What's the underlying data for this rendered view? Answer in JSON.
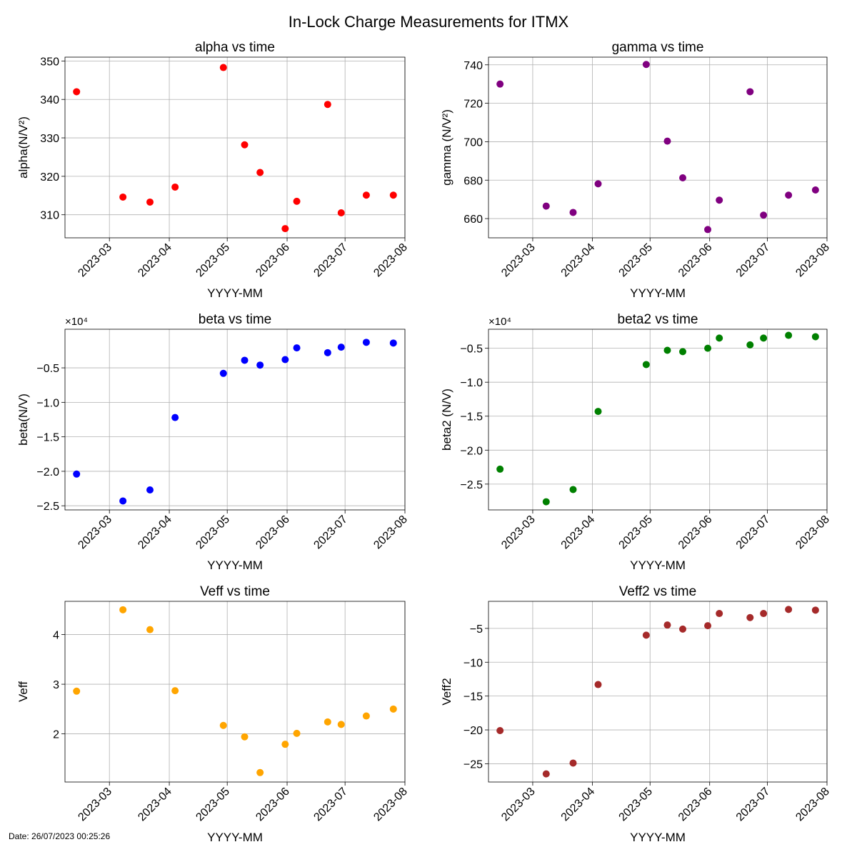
{
  "figure": {
    "title": "In-Lock Charge Measurements for ITMX",
    "footer": "Date: 26/07/2023 00:25:26"
  },
  "chart_data": [
    {
      "type": "scatter",
      "title": "alpha vs time",
      "xlabel": "YYYY-MM",
      "ylabel": "alpha(N/V²)",
      "color": "#ff0000",
      "multiplier": "",
      "x": [
        "2023-02-12",
        "2023-03-08",
        "2023-03-22",
        "2023-04-04",
        "2023-04-29",
        "2023-05-10",
        "2023-05-18",
        "2023-05-31",
        "2023-06-06",
        "2023-06-22",
        "2023-06-29",
        "2023-07-12",
        "2023-07-26"
      ],
      "y": [
        342,
        314.6,
        313.3,
        317.2,
        348.3,
        328.2,
        321.0,
        306.4,
        313.5,
        338.7,
        310.5,
        315.1,
        315.1
      ],
      "ylim": [
        304,
        351
      ],
      "yticks": [
        310,
        320,
        330,
        340,
        350
      ],
      "yticklabels": [
        "310",
        "320",
        "330",
        "340",
        "350"
      ],
      "xticks": [
        "2023-03-01",
        "2023-04-01",
        "2023-05-01",
        "2023-06-01",
        "2023-07-01",
        "2023-08-01"
      ],
      "xticklabels": [
        "2023-03",
        "2023-04",
        "2023-05",
        "2023-06",
        "2023-07",
        "2023-08"
      ],
      "xlim": [
        "2023-02-06",
        "2023-08-01"
      ],
      "grid": true
    },
    {
      "type": "scatter",
      "title": "gamma vs time",
      "xlabel": "YYYY-MM",
      "ylabel": "gamma (N/V²)",
      "color": "#800080",
      "multiplier": "",
      "x": [
        "2023-02-12",
        "2023-03-08",
        "2023-03-22",
        "2023-04-04",
        "2023-04-29",
        "2023-05-10",
        "2023-05-18",
        "2023-05-31",
        "2023-06-06",
        "2023-06-22",
        "2023-06-29",
        "2023-07-12",
        "2023-07-26"
      ],
      "y": [
        730,
        666.5,
        663.2,
        678.1,
        740.2,
        700.3,
        681.2,
        654.3,
        669.6,
        726.0,
        661.8,
        672.2,
        674.9
      ],
      "ylim": [
        650,
        744
      ],
      "yticks": [
        660,
        680,
        700,
        720,
        740
      ],
      "yticklabels": [
        "660",
        "680",
        "700",
        "720",
        "740"
      ],
      "xticks": [
        "2023-03-01",
        "2023-04-01",
        "2023-05-01",
        "2023-06-01",
        "2023-07-01",
        "2023-08-01"
      ],
      "xticklabels": [
        "2023-03",
        "2023-04",
        "2023-05",
        "2023-06",
        "2023-07",
        "2023-08"
      ],
      "xlim": [
        "2023-02-06",
        "2023-08-01"
      ],
      "grid": true
    },
    {
      "type": "scatter",
      "title": "beta vs time",
      "xlabel": "YYYY-MM",
      "ylabel": "beta(N/V)",
      "color": "#0000ff",
      "multiplier": "×10⁴",
      "x": [
        "2023-02-12",
        "2023-03-08",
        "2023-03-22",
        "2023-04-04",
        "2023-04-29",
        "2023-05-10",
        "2023-05-18",
        "2023-05-31",
        "2023-06-06",
        "2023-06-22",
        "2023-06-29",
        "2023-07-12",
        "2023-07-26"
      ],
      "y": [
        -2.04,
        -2.43,
        -2.27,
        -1.22,
        -0.58,
        -0.39,
        -0.46,
        -0.38,
        -0.21,
        -0.28,
        -0.2,
        -0.13,
        -0.14
      ],
      "ylim": [
        -2.56,
        0.06
      ],
      "yticks": [
        -2.5,
        -2.0,
        -1.5,
        -1.0,
        -0.5
      ],
      "yticklabels": [
        "−2.5",
        "−2.0",
        "−1.5",
        "−1.0",
        "−0.5"
      ],
      "xticks": [
        "2023-03-01",
        "2023-04-01",
        "2023-05-01",
        "2023-06-01",
        "2023-07-01",
        "2023-08-01"
      ],
      "xticklabels": [
        "2023-03",
        "2023-04",
        "2023-05",
        "2023-06",
        "2023-07",
        "2023-08"
      ],
      "xlim": [
        "2023-02-06",
        "2023-08-01"
      ],
      "grid": true
    },
    {
      "type": "scatter",
      "title": "beta2 vs time",
      "xlabel": "YYYY-MM",
      "ylabel": "beta2 (N/V)",
      "color": "#008000",
      "multiplier": "×10⁴",
      "x": [
        "2023-02-12",
        "2023-03-08",
        "2023-03-22",
        "2023-04-04",
        "2023-04-29",
        "2023-05-10",
        "2023-05-18",
        "2023-05-31",
        "2023-06-06",
        "2023-06-22",
        "2023-06-29",
        "2023-07-12",
        "2023-07-26"
      ],
      "y": [
        -2.28,
        -2.76,
        -2.58,
        -1.43,
        -0.74,
        -0.53,
        -0.55,
        -0.5,
        -0.35,
        -0.45,
        -0.35,
        -0.31,
        -0.33
      ],
      "ylim": [
        -2.88,
        -0.22
      ],
      "yticks": [
        -2.5,
        -2.0,
        -1.5,
        -1.0,
        -0.5
      ],
      "yticklabels": [
        "−2.5",
        "−2.0",
        "−1.5",
        "−1.0",
        "−0.5"
      ],
      "xticks": [
        "2023-03-01",
        "2023-04-01",
        "2023-05-01",
        "2023-06-01",
        "2023-07-01",
        "2023-08-01"
      ],
      "xticklabels": [
        "2023-03",
        "2023-04",
        "2023-05",
        "2023-06",
        "2023-07",
        "2023-08"
      ],
      "xlim": [
        "2023-02-06",
        "2023-08-01"
      ],
      "grid": true
    },
    {
      "type": "scatter",
      "title": "Veff vs time",
      "xlabel": "YYYY-MM",
      "ylabel": "Veff",
      "color": "#ffa500",
      "multiplier": "",
      "x": [
        "2023-02-12",
        "2023-03-08",
        "2023-03-22",
        "2023-04-04",
        "2023-04-29",
        "2023-05-10",
        "2023-05-18",
        "2023-05-31",
        "2023-06-06",
        "2023-06-22",
        "2023-06-29",
        "2023-07-12",
        "2023-07-26"
      ],
      "y": [
        2.86,
        4.5,
        4.1,
        2.87,
        2.17,
        1.94,
        1.22,
        1.79,
        2.01,
        2.24,
        2.19,
        2.36,
        2.5
      ],
      "ylim": [
        1.03,
        4.67
      ],
      "yticks": [
        2,
        3,
        4
      ],
      "yticklabels": [
        "2",
        "3",
        "4"
      ],
      "xticks": [
        "2023-03-01",
        "2023-04-01",
        "2023-05-01",
        "2023-06-01",
        "2023-07-01",
        "2023-08-01"
      ],
      "xticklabels": [
        "2023-03",
        "2023-04",
        "2023-05",
        "2023-06",
        "2023-07",
        "2023-08"
      ],
      "xlim": [
        "2023-02-06",
        "2023-08-01"
      ],
      "grid": true
    },
    {
      "type": "scatter",
      "title": "Veff2 vs time",
      "xlabel": "YYYY-MM",
      "ylabel": "Veff2",
      "color": "#a52a2a",
      "multiplier": "",
      "x": [
        "2023-02-12",
        "2023-03-08",
        "2023-03-22",
        "2023-04-04",
        "2023-04-29",
        "2023-05-10",
        "2023-05-18",
        "2023-05-31",
        "2023-06-06",
        "2023-06-22",
        "2023-06-29",
        "2023-07-12",
        "2023-07-26"
      ],
      "y": [
        -20.1,
        -26.5,
        -24.9,
        -13.3,
        -6.0,
        -4.5,
        -5.1,
        -4.6,
        -2.8,
        -3.4,
        -2.8,
        -2.2,
        -2.3
      ],
      "ylim": [
        -27.7,
        -1.0
      ],
      "yticks": [
        -25,
        -20,
        -15,
        -10,
        -5
      ],
      "yticklabels": [
        "−25",
        "−20",
        "−15",
        "−10",
        "−5"
      ],
      "xticks": [
        "2023-03-01",
        "2023-04-01",
        "2023-05-01",
        "2023-06-01",
        "2023-07-01",
        "2023-08-01"
      ],
      "xticklabels": [
        "2023-03",
        "2023-04",
        "2023-05",
        "2023-06",
        "2023-07",
        "2023-08"
      ],
      "xlim": [
        "2023-02-06",
        "2023-08-01"
      ],
      "grid": true
    }
  ]
}
